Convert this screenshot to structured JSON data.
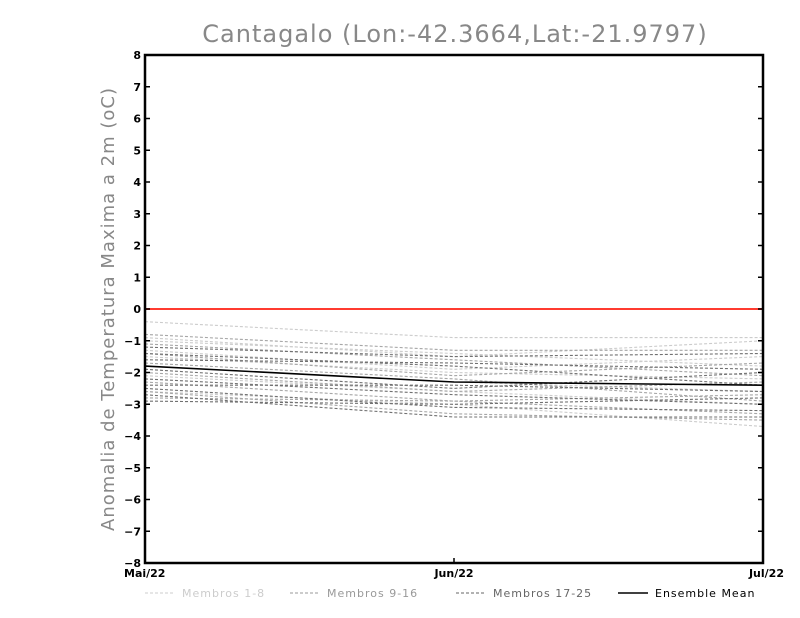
{
  "chart_data": {
    "type": "line",
    "title": "Cantagalo (Lon:-42.3664,Lat:-21.9797)",
    "xlabel": "",
    "ylabel": "Anomalia de Temperatura Maxima a 2m (oC)",
    "categories": [
      "Mai/22",
      "Jun/22",
      "Jul/22"
    ],
    "ylim": [
      -8,
      8
    ],
    "yticks": [
      "8",
      "7",
      "6",
      "5",
      "4",
      "3",
      "2",
      "1",
      "0",
      "−1",
      "−2",
      "−3",
      "−4",
      "−5",
      "−6",
      "−7",
      "−8"
    ],
    "ytick_values": [
      8,
      7,
      6,
      5,
      4,
      3,
      2,
      1,
      0,
      -1,
      -2,
      -3,
      -4,
      -5,
      -6,
      -7,
      -8
    ],
    "zero_line_color": "#ff3b30",
    "grid": false,
    "legend_position": "bottom",
    "series": [
      {
        "name": "Membros 1-8",
        "group": 1,
        "values": [
          -0.4,
          -0.9,
          -0.9
        ]
      },
      {
        "name": "Membros 1-8",
        "group": 1,
        "values": [
          -0.9,
          -1.5,
          -1.0
        ]
      },
      {
        "name": "Membros 1-8",
        "group": 1,
        "values": [
          -1.0,
          -1.4,
          -1.8
        ]
      },
      {
        "name": "Membros 1-8",
        "group": 1,
        "values": [
          -1.3,
          -1.9,
          -1.5
        ]
      },
      {
        "name": "Membros 1-8",
        "group": 1,
        "values": [
          -1.5,
          -2.0,
          -2.2
        ]
      },
      {
        "name": "Membros 1-8",
        "group": 1,
        "values": [
          -1.8,
          -2.3,
          -2.6
        ]
      },
      {
        "name": "Membros 1-8",
        "group": 1,
        "values": [
          -2.1,
          -2.6,
          -3.0
        ]
      },
      {
        "name": "Membros 1-8",
        "group": 1,
        "values": [
          -2.6,
          -3.0,
          -3.7
        ]
      },
      {
        "name": "Membros 9-16",
        "group": 2,
        "values": [
          -0.8,
          -1.3,
          -1.3
        ]
      },
      {
        "name": "Membros 9-16",
        "group": 2,
        "values": [
          -1.1,
          -1.6,
          -2.1
        ]
      },
      {
        "name": "Membros 9-16",
        "group": 2,
        "values": [
          -1.4,
          -2.1,
          -1.7
        ]
      },
      {
        "name": "Membros 9-16",
        "group": 2,
        "values": [
          -1.7,
          -2.2,
          -2.9
        ]
      },
      {
        "name": "Membros 9-16",
        "group": 2,
        "values": [
          -2.0,
          -2.6,
          -2.3
        ]
      },
      {
        "name": "Membros 9-16",
        "group": 2,
        "values": [
          -2.3,
          -2.9,
          -3.3
        ]
      },
      {
        "name": "Membros 9-16",
        "group": 2,
        "values": [
          -2.6,
          -3.3,
          -3.5
        ]
      },
      {
        "name": "Membros 9-16",
        "group": 2,
        "values": [
          -2.8,
          -2.9,
          -2.7
        ]
      },
      {
        "name": "Membros 17-25",
        "group": 3,
        "values": [
          -1.2,
          -1.5,
          -1.4
        ]
      },
      {
        "name": "Membros 17-25",
        "group": 3,
        "values": [
          -1.4,
          -1.8,
          -2.4
        ]
      },
      {
        "name": "Membros 17-25",
        "group": 3,
        "values": [
          -1.6,
          -1.7,
          -1.9
        ]
      },
      {
        "name": "Membros 17-25",
        "group": 3,
        "values": [
          -1.9,
          -2.5,
          -2.0
        ]
      },
      {
        "name": "Membros 17-25",
        "group": 3,
        "values": [
          -2.2,
          -2.7,
          -3.0
        ]
      },
      {
        "name": "Membros 17-25",
        "group": 3,
        "values": [
          -2.4,
          -2.4,
          -2.6
        ]
      },
      {
        "name": "Membros 17-25",
        "group": 3,
        "values": [
          -2.5,
          -3.1,
          -3.2
        ]
      },
      {
        "name": "Membros 17-25",
        "group": 3,
        "values": [
          -2.7,
          -3.4,
          -3.4
        ]
      },
      {
        "name": "Membros 17-25",
        "group": 3,
        "values": [
          -2.9,
          -3.0,
          -2.8
        ]
      },
      {
        "name": "Ensemble Mean",
        "group": 4,
        "values": [
          -1.8,
          -2.3,
          -2.4
        ]
      }
    ],
    "legend": [
      {
        "label": "Membros 1-8",
        "color": "#cccccc",
        "dashed": true
      },
      {
        "label": "Membros 9-16",
        "color": "#999999",
        "dashed": true
      },
      {
        "label": "Membros 17-25",
        "color": "#666666",
        "dashed": true
      },
      {
        "label": "Ensemble Mean",
        "color": "#000000",
        "dashed": false
      }
    ],
    "group_colors": {
      "1": "#cccccc",
      "2": "#a6a6a6",
      "3": "#707070",
      "4": "#000000"
    }
  }
}
